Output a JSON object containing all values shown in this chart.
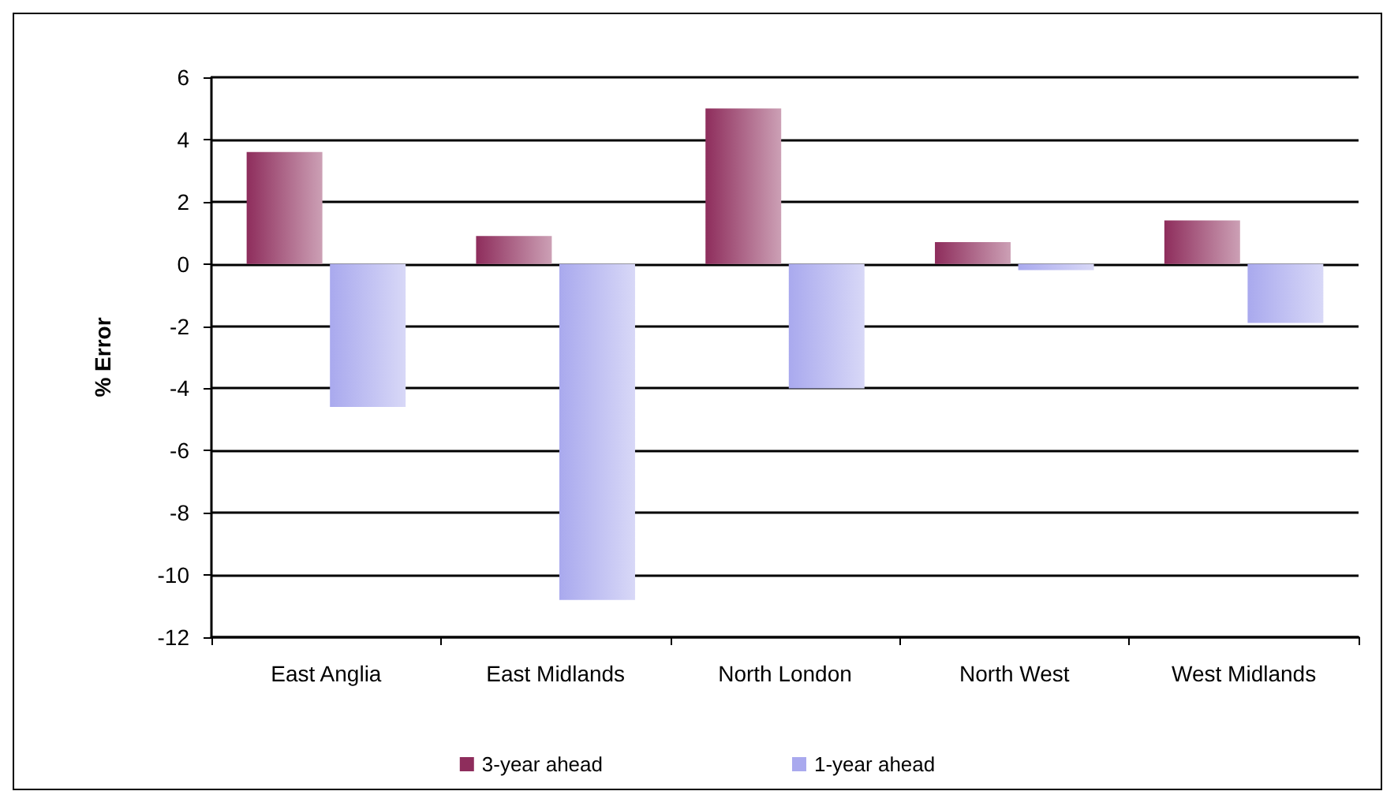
{
  "chart_data": {
    "type": "bar",
    "ylabel": "% Error",
    "categories": [
      "East Anglia",
      "East Midlands",
      "North London",
      "North West",
      "West Midlands"
    ],
    "series": [
      {
        "name": "3-year ahead",
        "color": "#8e2d5c",
        "values": [
          3.6,
          0.9,
          5.0,
          0.7,
          1.4
        ]
      },
      {
        "name": "1-year ahead",
        "color": "#a9a9ee",
        "values": [
          -4.6,
          -10.8,
          -4.0,
          -0.2,
          -1.9
        ]
      }
    ],
    "ylim": [
      -12,
      6
    ],
    "yticks": [
      -12,
      -10,
      -8,
      -6,
      -4,
      -2,
      0,
      2,
      4,
      6
    ],
    "grid": "y",
    "legend": "bottom"
  }
}
